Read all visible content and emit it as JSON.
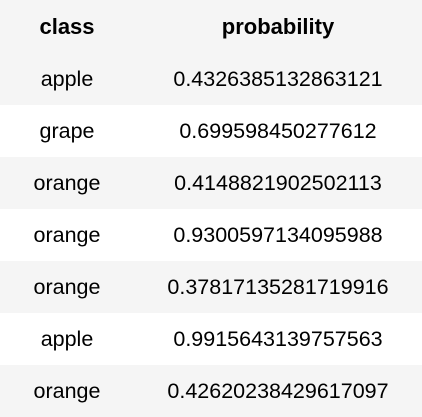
{
  "table": {
    "columns": [
      "class",
      "probability"
    ],
    "rows": [
      {
        "class": "apple",
        "probability": "0.4326385132863121"
      },
      {
        "class": "grape",
        "probability": "0.699598450277612"
      },
      {
        "class": "orange",
        "probability": "0.4148821902502113"
      },
      {
        "class": "orange",
        "probability": "0.9300597134095988"
      },
      {
        "class": "orange",
        "probability": "0.37817135281719916"
      },
      {
        "class": "apple",
        "probability": "0.9915643139757563"
      },
      {
        "class": "orange",
        "probability": "0.42620238429617097"
      }
    ]
  }
}
